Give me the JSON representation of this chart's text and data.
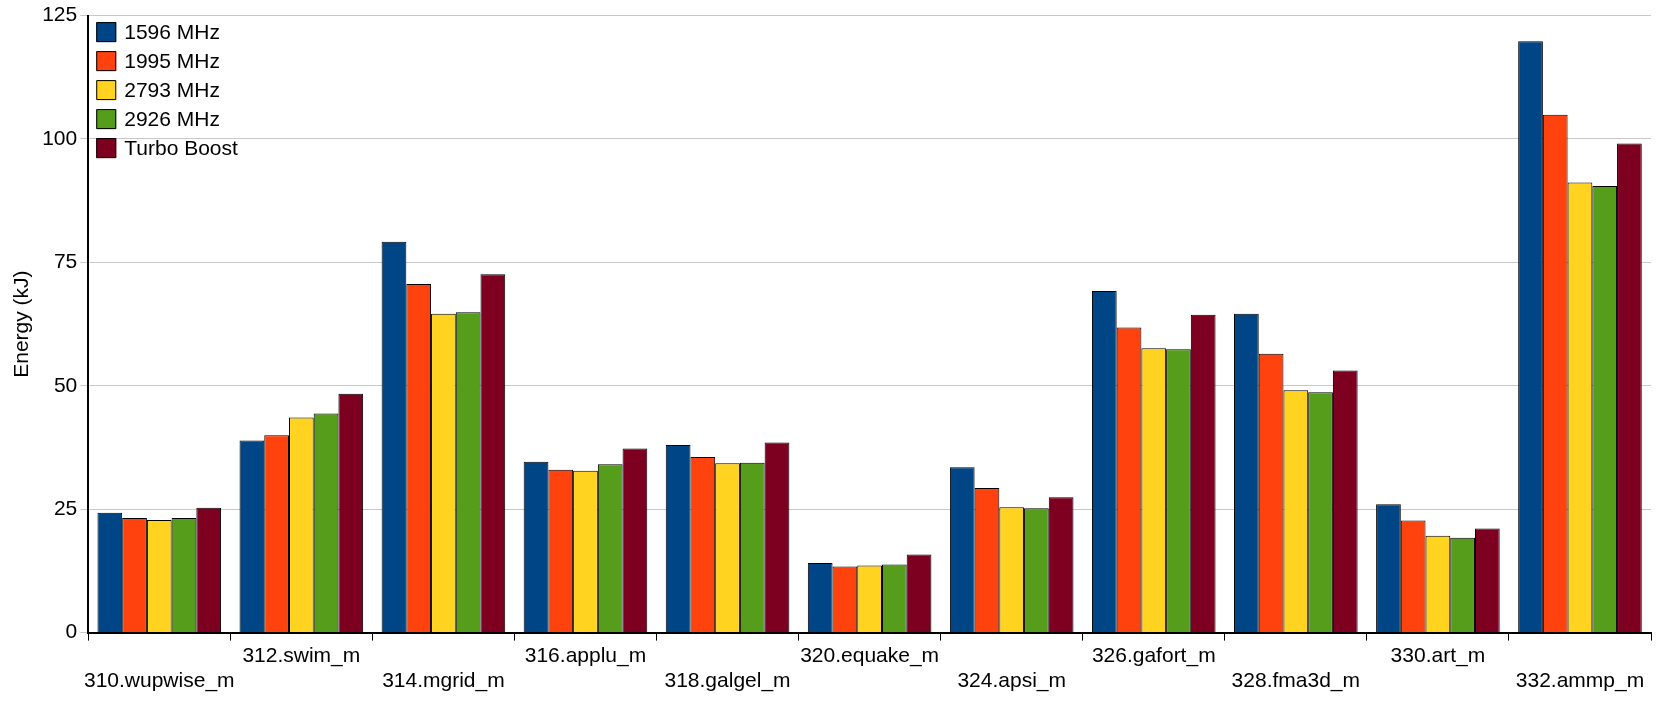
{
  "chart_data": {
    "type": "bar",
    "ylabel": "Energy (kJ)",
    "categories": [
      "310.wupwise_m",
      "312.swim_m",
      "314.mgrid_m",
      "316.applu_m",
      "318.galgel_m",
      "320.equake_m",
      "324.apsi_m",
      "326.gafort_m",
      "328.fma3d_m",
      "330.art_m",
      "332.ammp_m"
    ],
    "series": [
      {
        "name": "1596 MHz",
        "color": "#004586",
        "values": [
          24.3,
          38.9,
          79.2,
          34.6,
          38.0,
          14.1,
          33.5,
          69.2,
          64.6,
          26.0,
          119.8
        ]
      },
      {
        "name": "1995 MHz",
        "color": "#ff420e",
        "values": [
          23.2,
          40.0,
          70.6,
          33.0,
          35.6,
          13.4,
          29.3,
          61.8,
          56.5,
          22.7,
          104.9
        ]
      },
      {
        "name": "2793 MHz",
        "color": "#ffd320",
        "values": [
          22.8,
          43.6,
          64.6,
          32.8,
          34.3,
          13.6,
          25.4,
          57.6,
          49.1,
          19.6,
          91.2
        ]
      },
      {
        "name": "2926 MHz",
        "color": "#579d1c",
        "values": [
          23.2,
          44.4,
          64.9,
          34.1,
          34.4,
          13.8,
          25.2,
          57.4,
          48.7,
          19.2,
          90.5
        ]
      },
      {
        "name": "Turbo Boost",
        "color": "#7e0021",
        "values": [
          25.3,
          48.4,
          72.6,
          37.3,
          38.5,
          15.8,
          27.4,
          64.4,
          53.1,
          21.1,
          99.1
        ]
      }
    ],
    "ylim": [
      0,
      125
    ],
    "yticks": [
      0,
      25,
      50,
      75,
      100,
      125
    ],
    "grid": "y",
    "legend": "top left"
  }
}
